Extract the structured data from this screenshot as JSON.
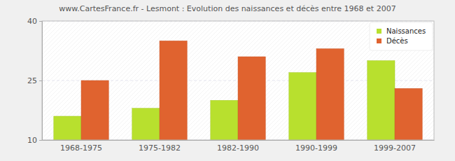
{
  "chart_data": {
    "type": "bar",
    "title": "www.CartesFrance.fr - Lesmont : Evolution des naissances et décès entre 1968 et 2007",
    "categories": [
      "1968-1975",
      "1975-1982",
      "1982-1990",
      "1990-1999",
      "1999-2007"
    ],
    "series": [
      {
        "name": "Naissances",
        "color": "#b8e02e",
        "values": [
          16,
          18,
          20,
          27,
          30
        ]
      },
      {
        "name": "Décès",
        "color": "#e0632f",
        "values": [
          25,
          35,
          31,
          33,
          23
        ]
      }
    ],
    "ylim": [
      10,
      40
    ],
    "yticks": [
      10,
      25,
      40
    ],
    "grid": true,
    "legend": "top-right"
  }
}
